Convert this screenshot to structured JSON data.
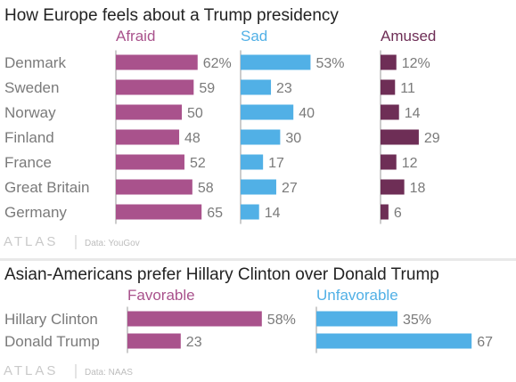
{
  "colors": {
    "afraid": "#a9528c",
    "sad": "#51b0e6",
    "amused": "#6e2e56",
    "favorable": "#a9528c",
    "unfavorable": "#51b0e6",
    "title": "#222222",
    "label": "#7a7a7a"
  },
  "footer": {
    "logo": "ATLAS",
    "source1": "Data: YouGov",
    "source2": "Data: NAAS"
  },
  "chart_data": [
    {
      "type": "bar",
      "orientation": "horizontal",
      "title": "How Europe feels about a Trump presidency",
      "categories": [
        "Denmark",
        "Sweden",
        "Norway",
        "Finland",
        "France",
        "Great Britain",
        "Germany"
      ],
      "series": [
        {
          "name": "Afraid",
          "values": [
            62,
            59,
            50,
            48,
            52,
            58,
            65
          ],
          "labels": [
            "62%",
            "59",
            "50",
            "48",
            "52",
            "58",
            "65"
          ]
        },
        {
          "name": "Sad",
          "values": [
            53,
            23,
            40,
            30,
            17,
            27,
            14
          ],
          "labels": [
            "53%",
            "23",
            "40",
            "30",
            "17",
            "27",
            "14"
          ]
        },
        {
          "name": "Amused",
          "values": [
            12,
            11,
            14,
            29,
            12,
            18,
            6
          ],
          "labels": [
            "12%",
            "11",
            "14",
            "29",
            "12",
            "18",
            "6"
          ]
        }
      ],
      "unit": "%"
    },
    {
      "type": "bar",
      "orientation": "horizontal",
      "title": "Asian-Americans prefer Hillary Clinton over Donald Trump",
      "categories": [
        "Hillary Clinton",
        "Donald Trump"
      ],
      "series": [
        {
          "name": "Favorable",
          "values": [
            58,
            23
          ],
          "labels": [
            "58%",
            "23"
          ]
        },
        {
          "name": "Unfavorable",
          "values": [
            35,
            67
          ],
          "labels": [
            "35%",
            "67"
          ]
        }
      ],
      "unit": "%"
    }
  ]
}
